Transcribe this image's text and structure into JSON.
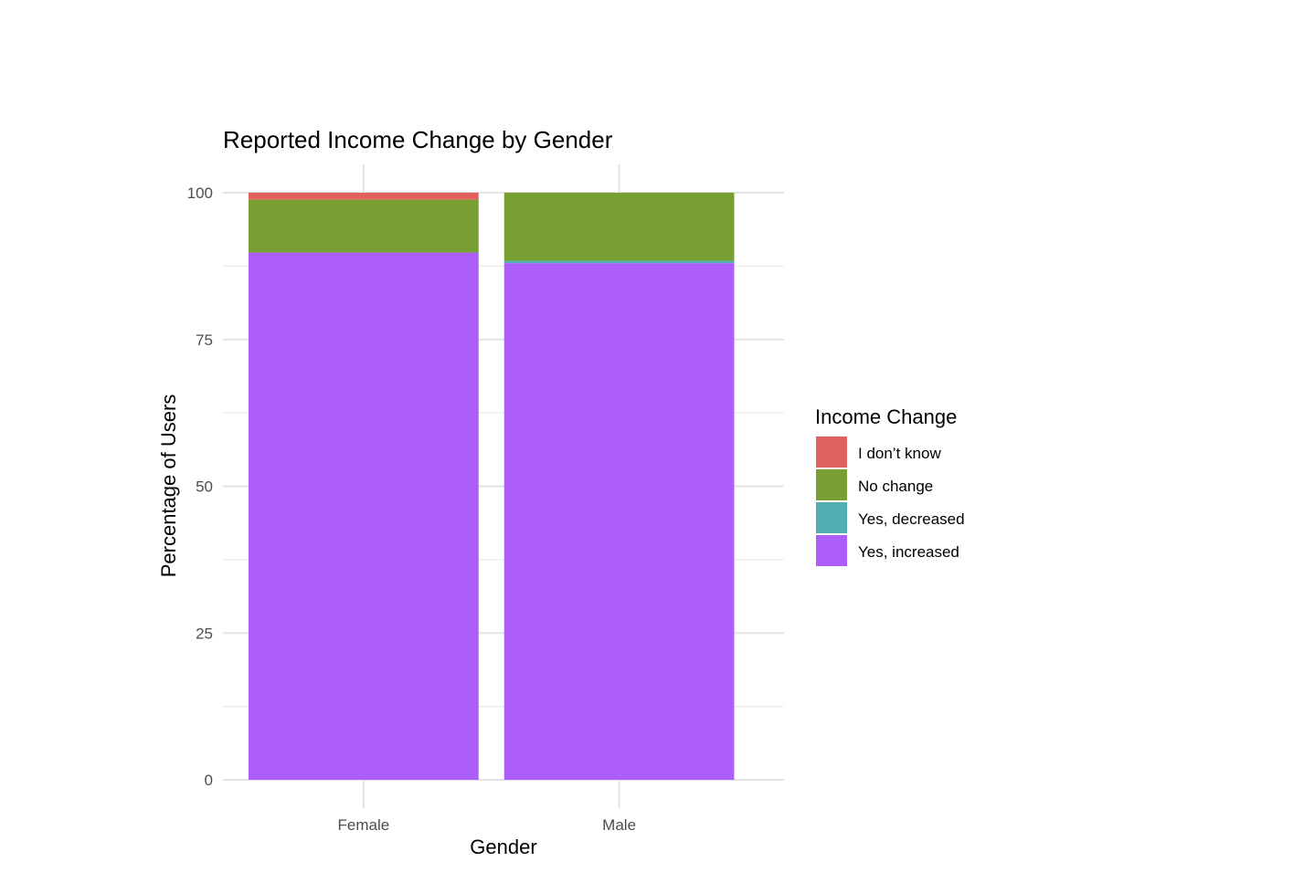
{
  "chart_data": {
    "type": "bar",
    "stacked": true,
    "title": "Reported Income Change by Gender",
    "xlabel": "Gender",
    "ylabel": "Percentage of Users",
    "ylim": [
      0,
      100
    ],
    "yticks": [
      0,
      25,
      50,
      75,
      100
    ],
    "categories": [
      "Female",
      "Male"
    ],
    "legend": {
      "title": "Income Change",
      "placement": "right"
    },
    "grid": true,
    "series": [
      {
        "name": "Yes, increased",
        "color": "#AD5EF9",
        "values": [
          89.8,
          88.0
        ]
      },
      {
        "name": "Yes, decreased",
        "color": "#52AFB4",
        "values": [
          0.0,
          0.4
        ]
      },
      {
        "name": "No change",
        "color": "#779F31",
        "values": [
          9.0,
          11.6
        ]
      },
      {
        "name": "I don’t know",
        "color": "#E0625F",
        "values": [
          1.2,
          0.0
        ]
      }
    ],
    "legend_order": [
      "I don’t know",
      "No change",
      "Yes, decreased",
      "Yes, increased"
    ]
  }
}
